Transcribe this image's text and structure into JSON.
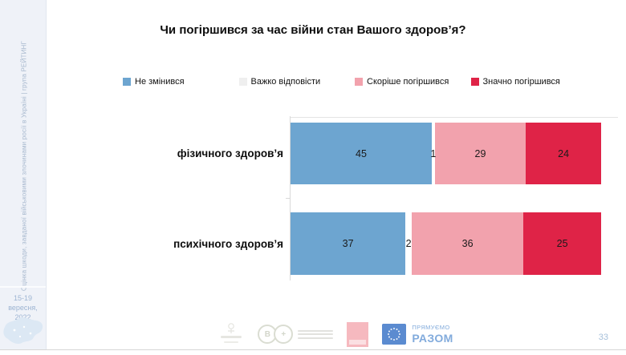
{
  "sidebar": {
    "vertical_text": "Оцінка шкоди, завданої військовими злочинами росії в Україні | група РЕЙТИНГ",
    "date_line1": "15-19 вересня,",
    "date_line2": "2022"
  },
  "title": "Чи погіршився за час війни стан Вашого здоров’я?",
  "legend": [
    {
      "label": "Не змінився",
      "color": "#6DA5D0"
    },
    {
      "label": "Важко відповісти",
      "color": "#EFEFEF"
    },
    {
      "label": "Скоріше погіршився",
      "color": "#F2A2AD"
    },
    {
      "label": "Значно погіршився",
      "color": "#DF2347"
    }
  ],
  "chart_data": {
    "type": "bar",
    "orientation": "horizontal",
    "stacked": true,
    "title": "Чи погіршився за час війни стан Вашого здоров’я?",
    "categories": [
      "фізичного здоров’я",
      "психічного здоров’я"
    ],
    "series": [
      {
        "name": "Не змінився",
        "color": "#6DA5D0",
        "values": [
          45,
          37
        ]
      },
      {
        "name": "Важко відповісти",
        "color": "#FFFFFF",
        "values": [
          1,
          2
        ]
      },
      {
        "name": "Скоріше погіршився",
        "color": "#F2A2AD",
        "values": [
          29,
          36
        ]
      },
      {
        "name": "Значно погіршився",
        "color": "#DF2347",
        "values": [
          24,
          25
        ]
      }
    ],
    "xlim": [
      0,
      100
    ],
    "grid": false,
    "legend_position": "top",
    "value_labels": "inside"
  },
  "footer": {
    "page_number": "33",
    "logos": [
      "emblem-logo",
      "b-plus-logo",
      "pink-square-logo",
      "eu-flag-logo"
    ],
    "b_plus": {
      "letter_b": "B",
      "letter_plus": "+"
    },
    "eu_logo": {
      "line1": "ПРЯМУЄМО",
      "line2": "РАЗОМ"
    }
  }
}
